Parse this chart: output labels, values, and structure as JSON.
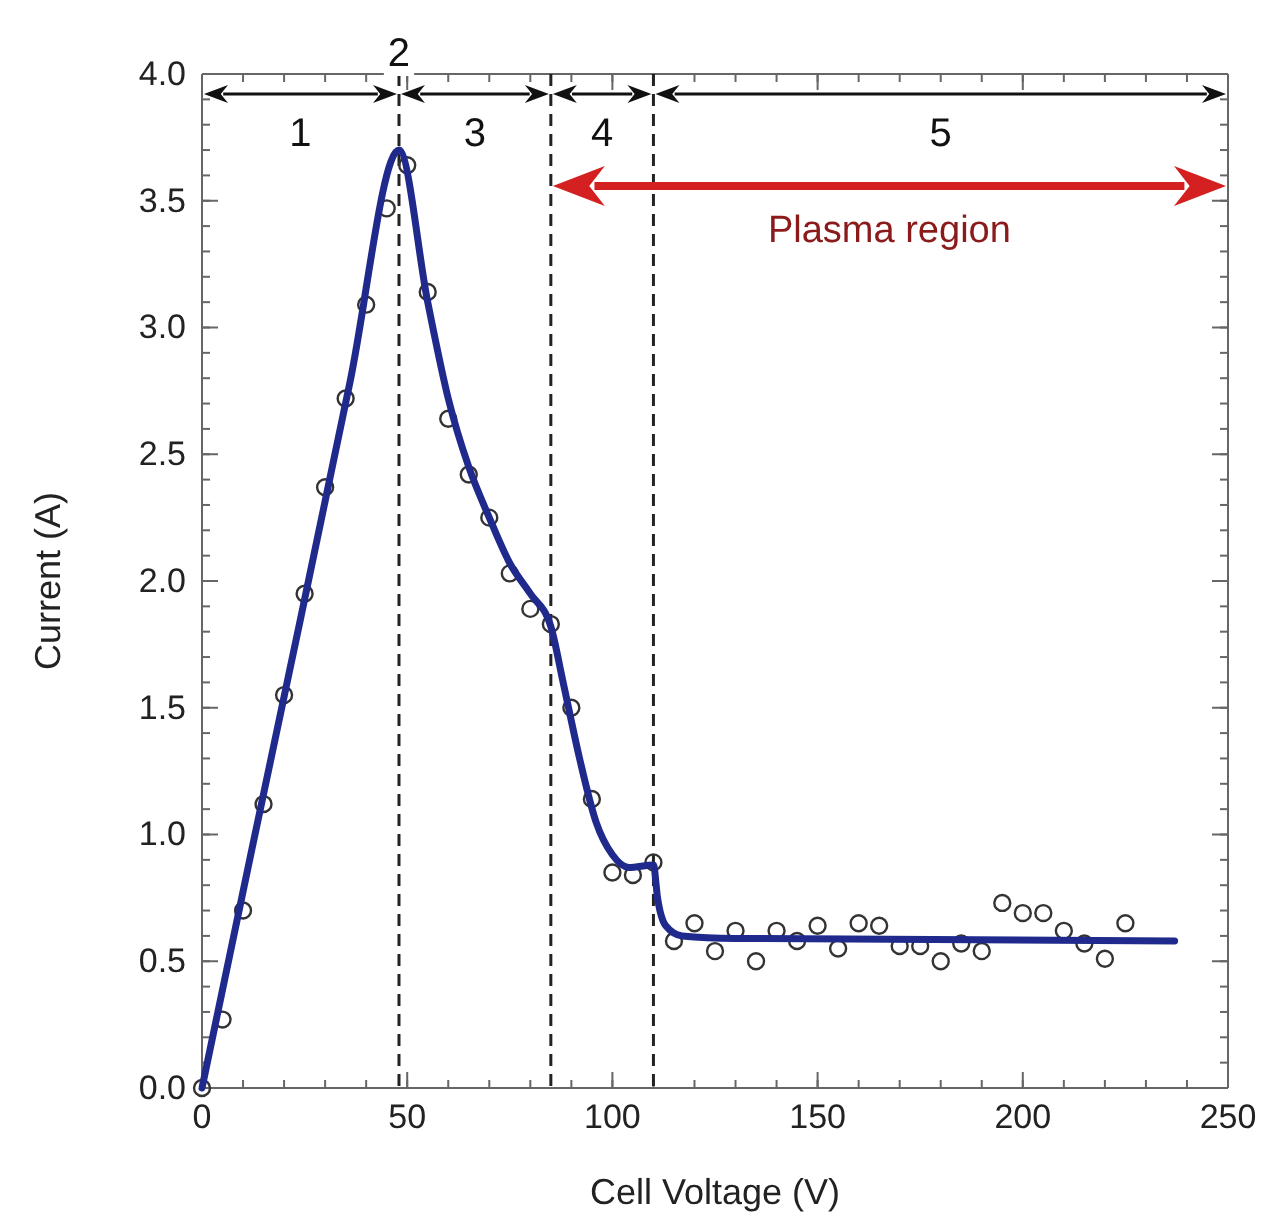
{
  "chart_data": {
    "type": "scatter",
    "xlabel": "Cell Voltage (V)",
    "ylabel": "Current (A)",
    "xlim": [
      0,
      250
    ],
    "ylim": [
      0,
      4
    ],
    "xticks": [
      0,
      50,
      100,
      150,
      200,
      250
    ],
    "yticks": [
      {
        "value": 0,
        "label": "0.0"
      },
      {
        "value": 0.5,
        "label": "0.5"
      },
      {
        "value": 1,
        "label": "1.0"
      },
      {
        "value": 1.5,
        "label": "1.5"
      },
      {
        "value": 2,
        "label": "2.0"
      },
      {
        "value": 2.5,
        "label": "2.5"
      },
      {
        "value": 3,
        "label": "3.0"
      },
      {
        "value": 3.5,
        "label": "3.5"
      },
      {
        "value": 4,
        "label": "4.0"
      }
    ],
    "grid": false,
    "marker": "circle",
    "series": [
      {
        "color": "#333333",
        "x": [
          0,
          5,
          10,
          15,
          20,
          25,
          30,
          35,
          40,
          45,
          50,
          55,
          60,
          65,
          70,
          75,
          80,
          85,
          90,
          95,
          100,
          105,
          110,
          115,
          120,
          125,
          130,
          135,
          140,
          145,
          150,
          155,
          160,
          165,
          170,
          175,
          180,
          185,
          190,
          195,
          200,
          205,
          210,
          215,
          220,
          225
        ],
        "values": [
          0,
          0.27,
          0.7,
          1.12,
          1.55,
          1.95,
          2.37,
          2.72,
          3.09,
          3.47,
          3.64,
          3.14,
          2.64,
          2.42,
          2.25,
          2.03,
          1.89,
          1.83,
          1.5,
          1.14,
          0.85,
          0.84,
          0.89,
          0.58,
          0.65,
          0.54,
          0.62,
          0.5,
          0.62,
          0.58,
          0.64,
          0.55,
          0.65,
          0.64,
          0.56,
          0.56,
          0.5,
          0.57,
          0.54,
          0.73,
          0.69,
          0.69,
          0.62,
          0.57,
          0.51,
          0.65
        ]
      },
      {
        "type": "line",
        "color": "#1f2a8c",
        "marker": "none",
        "line_style": "solid",
        "x": [
          0,
          12,
          24,
          36,
          48,
          55,
          60,
          65,
          70,
          75,
          80,
          85,
          88,
          92,
          96,
          100,
          104,
          110,
          111,
          113,
          117,
          130,
          237
        ],
        "values": [
          0,
          0.93,
          1.85,
          2.78,
          3.7,
          3.1,
          2.72,
          2.45,
          2.25,
          2.07,
          1.95,
          1.82,
          1.6,
          1.3,
          1.05,
          0.92,
          0.87,
          0.88,
          0.75,
          0.64,
          0.6,
          0.59,
          0.58
        ]
      }
    ],
    "ref_lines": [
      {
        "axis": "x",
        "value": 48,
        "line_style": "dashed",
        "color": "#222222"
      },
      {
        "axis": "x",
        "value": 85,
        "line_style": "dashed",
        "color": "#222222"
      },
      {
        "axis": "x",
        "value": 110,
        "line_style": "dashed",
        "color": "#222222"
      }
    ],
    "annotations": [
      "1",
      "2",
      "3",
      "4",
      "5",
      "Plasma region"
    ]
  }
}
